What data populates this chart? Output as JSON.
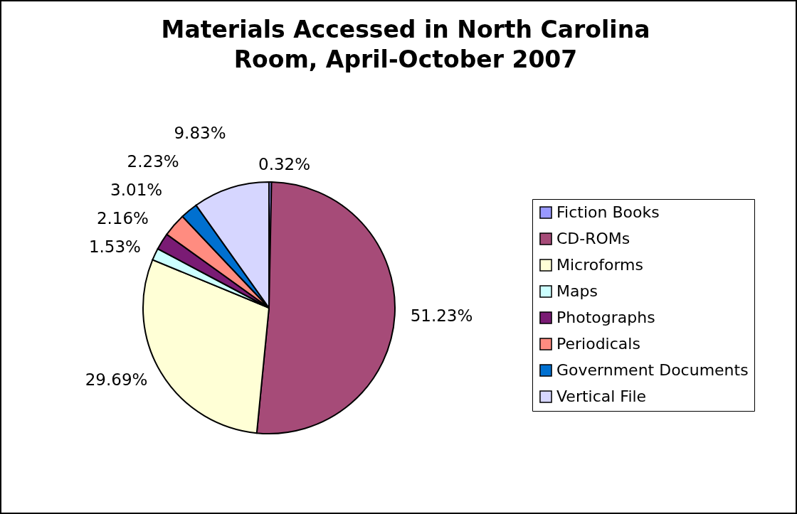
{
  "chart_data": {
    "type": "pie",
    "title": "Materials Accessed in North Carolina Room, April-October 2007",
    "categories": [
      "Fiction Books",
      "CD-ROMs",
      "Microforms",
      "Maps",
      "Photographs",
      "Periodicals",
      "Government Documents",
      "Vertical File"
    ],
    "values": [
      0.32,
      51.23,
      29.69,
      1.53,
      2.16,
      3.01,
      2.23,
      9.83
    ],
    "value_labels": [
      "0.32%",
      "51.23%",
      "29.69%",
      "1.53%",
      "2.16%",
      "3.01%",
      "2.23%",
      "9.83%"
    ],
    "colors": [
      "#9999ff",
      "#a64b78",
      "#ffffd6",
      "#ccffff",
      "#7a1b74",
      "#ff8c80",
      "#0070d0",
      "#d6d6ff"
    ],
    "legend": "right"
  }
}
